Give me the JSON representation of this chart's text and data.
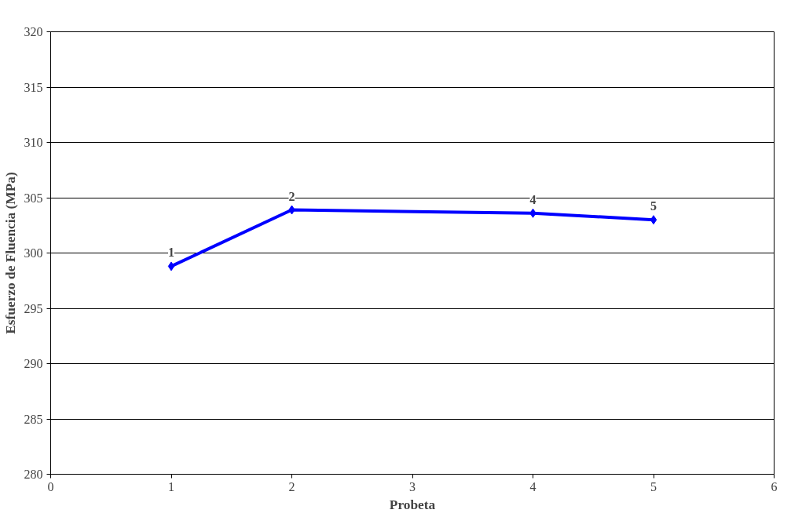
{
  "chart_data": {
    "type": "line",
    "xlabel": "Probeta",
    "ylabel": "Esfuerzo de Fluencia (MPa)",
    "x": [
      1,
      2,
      4,
      5
    ],
    "series": [
      {
        "color": "#0000ff",
        "values": [
          298.8,
          303.9,
          303.6,
          303.0
        ]
      }
    ],
    "xlim": [
      0,
      6
    ],
    "xticks": [
      0,
      1,
      2,
      3,
      4,
      5,
      6
    ],
    "ylim": [
      280,
      320
    ],
    "yticks": [
      280,
      285,
      290,
      295,
      300,
      305,
      310,
      315,
      320
    ],
    "grid": "y",
    "marker": "diamond",
    "line_style": "solid",
    "annotations": [
      {
        "text": "1",
        "x": 1,
        "y": 298.8
      },
      {
        "text": "2",
        "x": 2,
        "y": 303.9
      },
      {
        "text": "4",
        "x": 4,
        "y": 303.6
      },
      {
        "text": "5",
        "x": 5,
        "y": 303.0
      }
    ]
  }
}
